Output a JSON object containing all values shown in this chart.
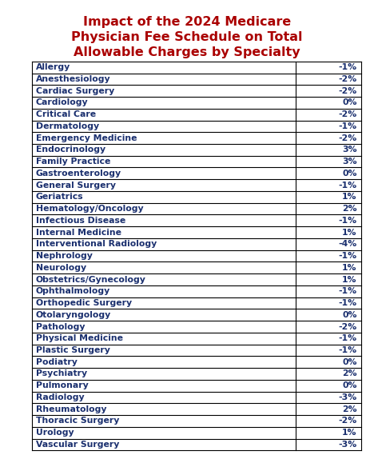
{
  "title_line1": "Impact of the 2024 Medicare",
  "title_line2": "Physician Fee Schedule on Total",
  "title_line3": "Allowable Charges by Specialty",
  "title_color": "#aa0000",
  "title_fontsize": 11.5,
  "table_text_color": "#1a2f6e",
  "specialties": [
    "Allergy",
    "Anesthesiology",
    "Cardiac Surgery",
    "Cardiology",
    "Critical Care",
    "Dermatology",
    "Emergency Medicine",
    "Endocrinology",
    "Family Practice",
    "Gastroenterology",
    "General Surgery",
    "Geriatrics",
    "Hematology/Oncology",
    "Infectious Disease",
    "Internal Medicine",
    "Interventional Radiology",
    "Nephrology",
    "Neurology",
    "Obstetrics/Gynecology",
    "Ophthalmology",
    "Orthopedic Surgery",
    "Otolaryngology",
    "Pathology",
    "Physical Medicine",
    "Plastic Surgery",
    "Podiatry",
    "Psychiatry",
    "Pulmonary",
    "Radiology",
    "Rheumatology",
    "Thoracic Surgery",
    "Urology",
    "Vascular Surgery"
  ],
  "values": [
    "-1%",
    "-2%",
    "-2%",
    "0%",
    "-2%",
    "-1%",
    "-2%",
    "3%",
    "3%",
    "0%",
    "-1%",
    "1%",
    "2%",
    "-1%",
    "1%",
    "-4%",
    "-1%",
    "1%",
    "1%",
    "-1%",
    "-1%",
    "0%",
    "-2%",
    "-1%",
    "-1%",
    "0%",
    "2%",
    "0%",
    "-3%",
    "2%",
    "-2%",
    "1%",
    "-3%"
  ],
  "background_color": "#ffffff",
  "font_size": 7.8
}
